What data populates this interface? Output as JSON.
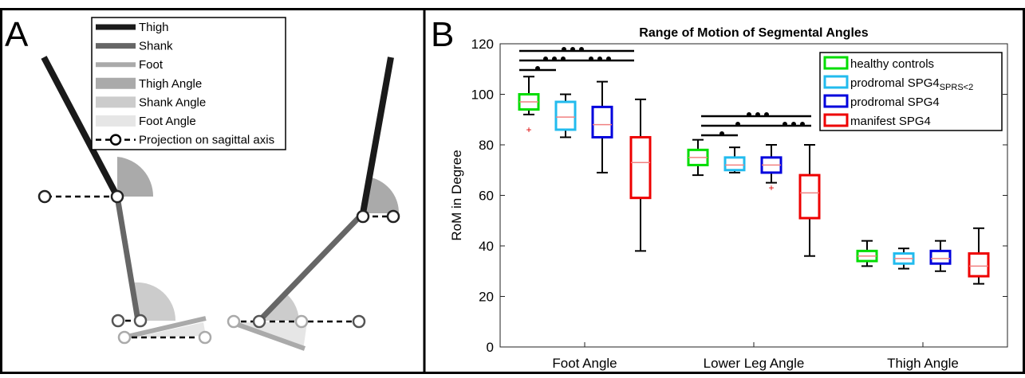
{
  "panels": [
    "A",
    "B"
  ],
  "diagram": {
    "legend": [
      "Thigh",
      "Shank",
      "Foot",
      "Thigh Angle",
      "Shank Angle",
      "Foot Angle",
      "Projection on sagittal axis"
    ]
  },
  "chart_data": {
    "type": "box",
    "title": "Range of Motion of Segmental Angles",
    "y_label": "RoM in Degree",
    "categories": [
      "Foot Angle",
      "Lower Leg Angle",
      "Thigh Angle"
    ],
    "ylim": [
      0,
      120
    ],
    "yticks": [
      0,
      20,
      40,
      60,
      80,
      100,
      120
    ],
    "legend": "upper right",
    "series": [
      {
        "name": "healthy controls",
        "color": "#00dd00",
        "values": [
          {
            "min": 92,
            "q1": 94,
            "median": 97,
            "q3": 100,
            "max": 107
          },
          {
            "min": 68,
            "q1": 72,
            "median": 75,
            "q3": 78,
            "max": 82
          },
          {
            "min": 32,
            "q1": 34,
            "median": 36,
            "q3": 38,
            "max": 42
          }
        ],
        "outliers": [
          [
            86
          ],
          [],
          []
        ]
      },
      {
        "name": "prodromal SPG4",
        "name_subscript": "SPRS<2",
        "color": "#22bbee",
        "values": [
          {
            "min": 83,
            "q1": 86,
            "median": 91,
            "q3": 97,
            "max": 100
          },
          {
            "min": 69,
            "q1": 70,
            "median": 72,
            "q3": 75,
            "max": 79
          },
          {
            "min": 31,
            "q1": 33,
            "median": 35,
            "q3": 37,
            "max": 39
          }
        ],
        "outliers": [
          [],
          [],
          []
        ]
      },
      {
        "name": "prodromal SPG4",
        "color": "#0000dd",
        "values": [
          {
            "min": 69,
            "q1": 83,
            "median": 88,
            "q3": 95,
            "max": 105
          },
          {
            "min": 65,
            "q1": 69,
            "median": 72,
            "q3": 75,
            "max": 80
          },
          {
            "min": 30,
            "q1": 33,
            "median": 35,
            "q3": 38,
            "max": 42
          }
        ],
        "outliers": [
          [],
          [
            63
          ],
          []
        ]
      },
      {
        "name": "manifest SPG4",
        "color": "#ee0000",
        "values": [
          {
            "min": 38,
            "q1": 59,
            "median": 73,
            "q3": 83,
            "max": 98
          },
          {
            "min": 36,
            "q1": 51,
            "median": 61,
            "q3": 68,
            "max": 80
          },
          {
            "min": 25,
            "q1": 28,
            "median": 32,
            "q3": 37,
            "max": 47
          }
        ],
        "outliers": [
          [],
          [],
          []
        ]
      }
    ]
  }
}
